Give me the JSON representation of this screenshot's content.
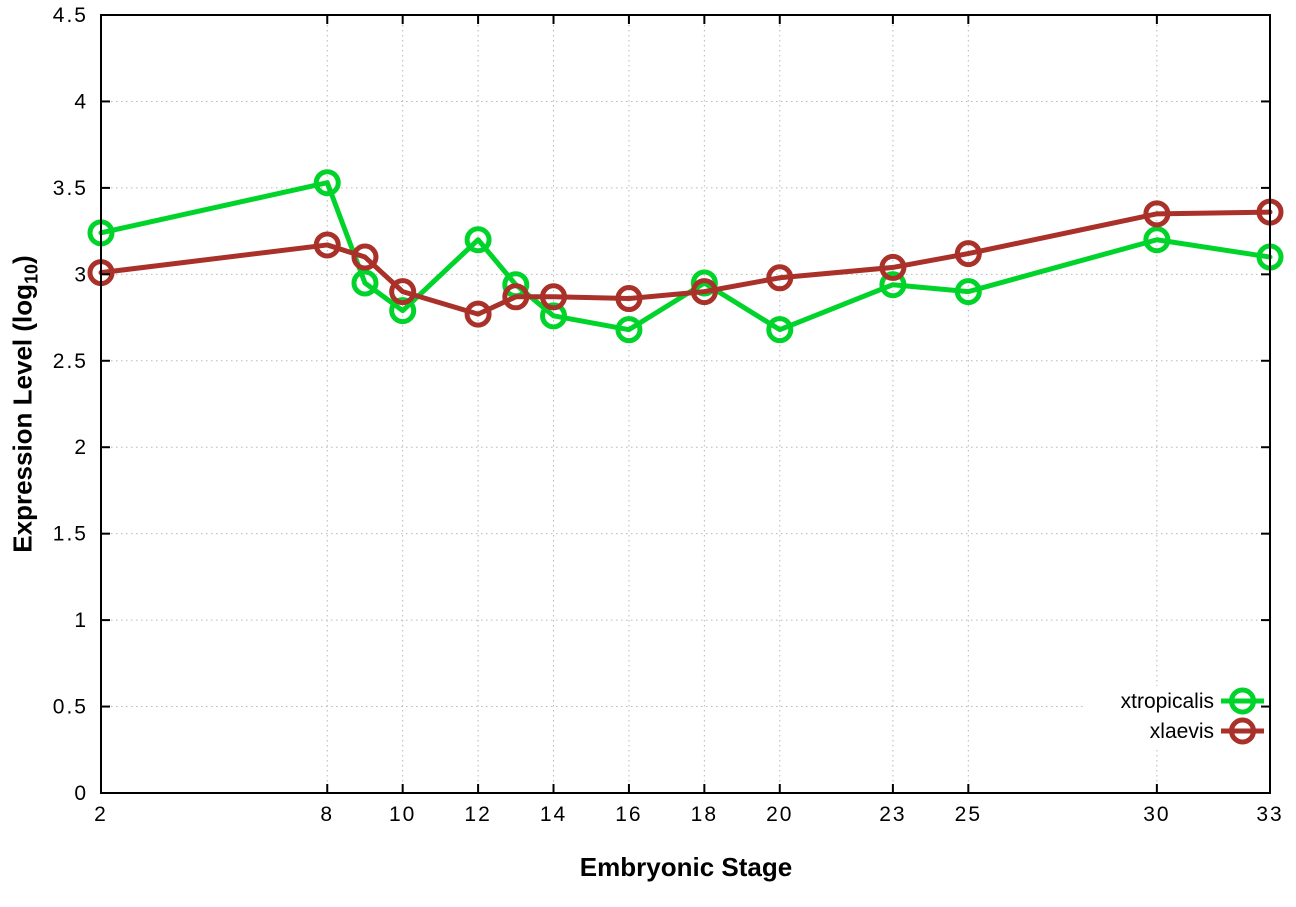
{
  "chart_data": {
    "type": "line",
    "title": "",
    "xlabel": "Embryonic Stage",
    "ylabel": "Expression Level (log10)",
    "ylabel_parts": {
      "main": "Expression Level (log",
      "sub": "10",
      "end": ")"
    },
    "x": [
      2,
      8,
      9,
      10,
      12,
      13,
      14,
      16,
      18,
      20,
      23,
      25,
      30,
      33
    ],
    "xtick_labels": [
      2,
      8,
      10,
      12,
      14,
      16,
      18,
      20,
      23,
      25,
      30,
      33
    ],
    "ytick_labels": [
      "0",
      "0.5",
      "1",
      "1.5",
      "2",
      "2.5",
      "3",
      "3.5",
      "4",
      "4.5"
    ],
    "xlim": [
      2,
      33
    ],
    "ylim": [
      0,
      4.5
    ],
    "ytick_step": 0.5,
    "grid": true,
    "legend_position": "bottom-right-inside",
    "series": [
      {
        "name": "xtropicalis",
        "color": "#00d42b",
        "marker": "open-circle",
        "values": [
          3.24,
          3.53,
          2.95,
          2.79,
          3.2,
          2.94,
          2.76,
          2.68,
          2.95,
          2.68,
          2.94,
          2.9,
          3.2,
          3.1
        ]
      },
      {
        "name": "xlaevis",
        "color": "#a93129",
        "marker": "open-circle",
        "values": [
          3.01,
          3.17,
          3.1,
          2.9,
          2.77,
          2.87,
          2.87,
          2.86,
          2.9,
          2.98,
          3.04,
          3.12,
          3.35,
          3.36
        ]
      }
    ]
  },
  "style_colors": {
    "grid": "#b8b8b8",
    "border": "#000000",
    "tick_text": "#000000",
    "background": "#ffffff"
  }
}
